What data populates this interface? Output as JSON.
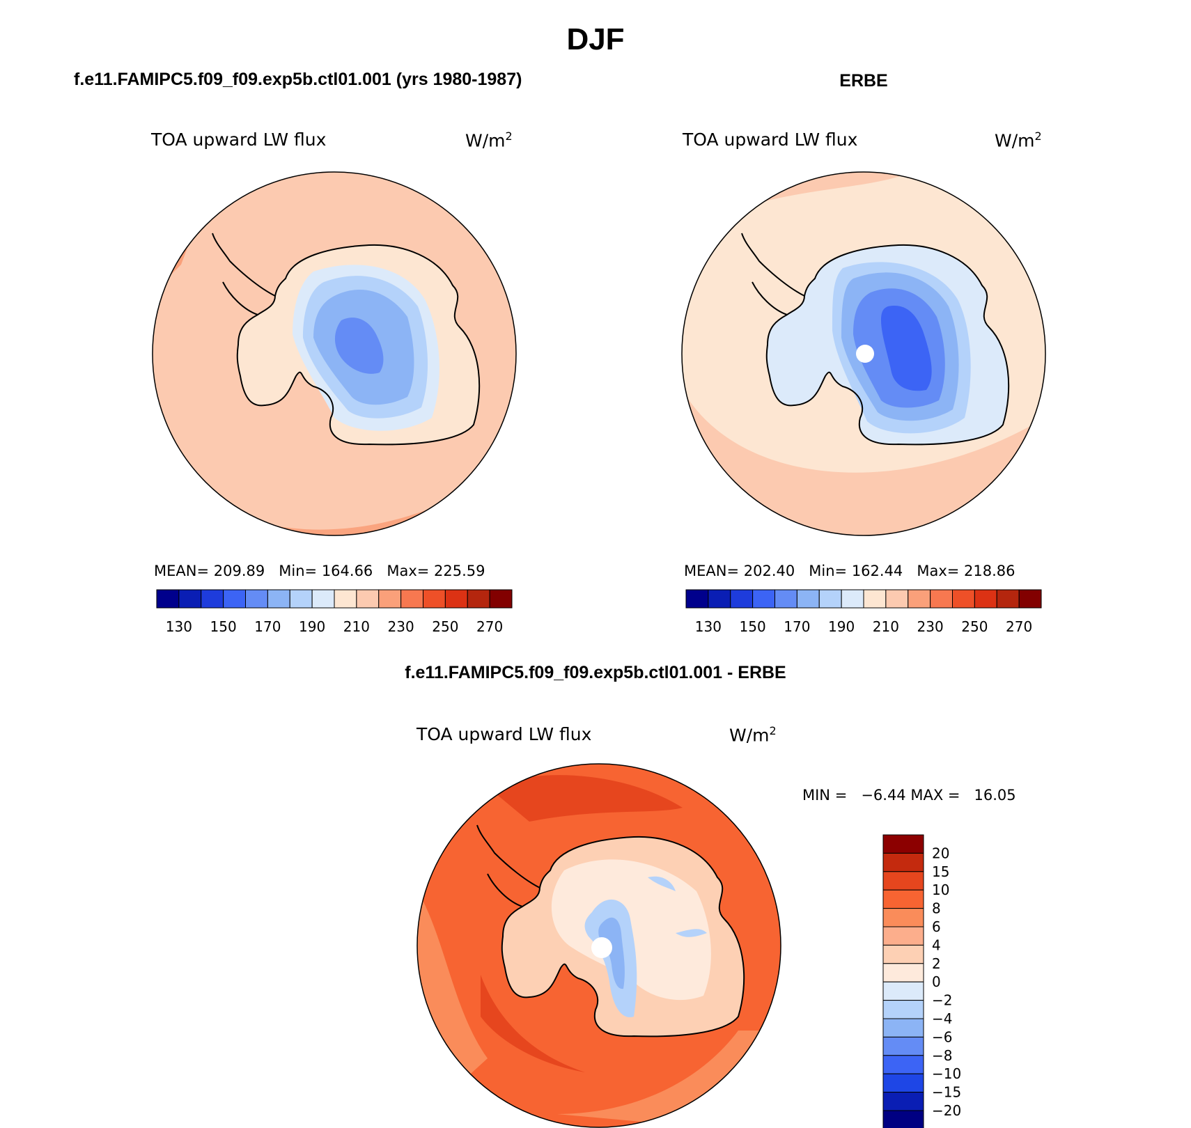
{
  "page": {
    "title": "DJF"
  },
  "panels": [
    {
      "id": "model",
      "header": "f.e11.FAMIPC5.f09_f09.exp5b.ctl01.001 (yrs 1980-1987)",
      "variable": "TOA upward LW flux",
      "units": "W/m",
      "units_sup": "2",
      "stats": {
        "mean_label": "MEAN=",
        "mean": "209.89",
        "min_label": "Min=",
        "min": "164.66",
        "max_label": "Max=",
        "max": "225.59"
      },
      "colorbar_labels": [
        "130",
        "150",
        "170",
        "190",
        "210",
        "230",
        "250",
        "270"
      ]
    },
    {
      "id": "obs",
      "header": "ERBE",
      "variable": "TOA upward LW flux",
      "units": "W/m",
      "units_sup": "2",
      "stats": {
        "mean_label": "MEAN=",
        "mean": "202.40",
        "min_label": "Min=",
        "min": "162.44",
        "max_label": "Max=",
        "max": "218.86"
      },
      "colorbar_labels": [
        "130",
        "150",
        "170",
        "190",
        "210",
        "230",
        "250",
        "270"
      ]
    }
  ],
  "diff": {
    "header": "f.e11.FAMIPC5.f09_f09.exp5b.ctl01.001 - ERBE",
    "variable": "TOA upward LW flux",
    "units": "W/m",
    "units_sup": "2",
    "minmax": "MIN =   −6.44 MAX =   16.05",
    "colorbar_labels": [
      "20",
      "15",
      "10",
      "8",
      "6",
      "4",
      "2",
      "0",
      "−2",
      "−4",
      "−6",
      "−8",
      "−10",
      "−15",
      "−20"
    ]
  },
  "colors": {
    "abs_scale": [
      "#00008c",
      "#0a1eb4",
      "#1e3cdc",
      "#3c64f5",
      "#648cf5",
      "#8cb4f5",
      "#b4d2fa",
      "#dceafa",
      "#fde6d2",
      "#fccab0",
      "#faa07a",
      "#f77850",
      "#ee5028",
      "#dc3214",
      "#b4260e",
      "#820000"
    ],
    "diff_scale": [
      "#8c0000",
      "#c42a0e",
      "#e6461e",
      "#f76432",
      "#fa8c5a",
      "#fcae8c",
      "#fdd0b4",
      "#feeadc",
      "#dceafa",
      "#b4d2fa",
      "#8cb4f5",
      "#648cf5",
      "#3c64f5",
      "#1e46e6",
      "#0a1eb4",
      "#000082"
    ]
  }
}
